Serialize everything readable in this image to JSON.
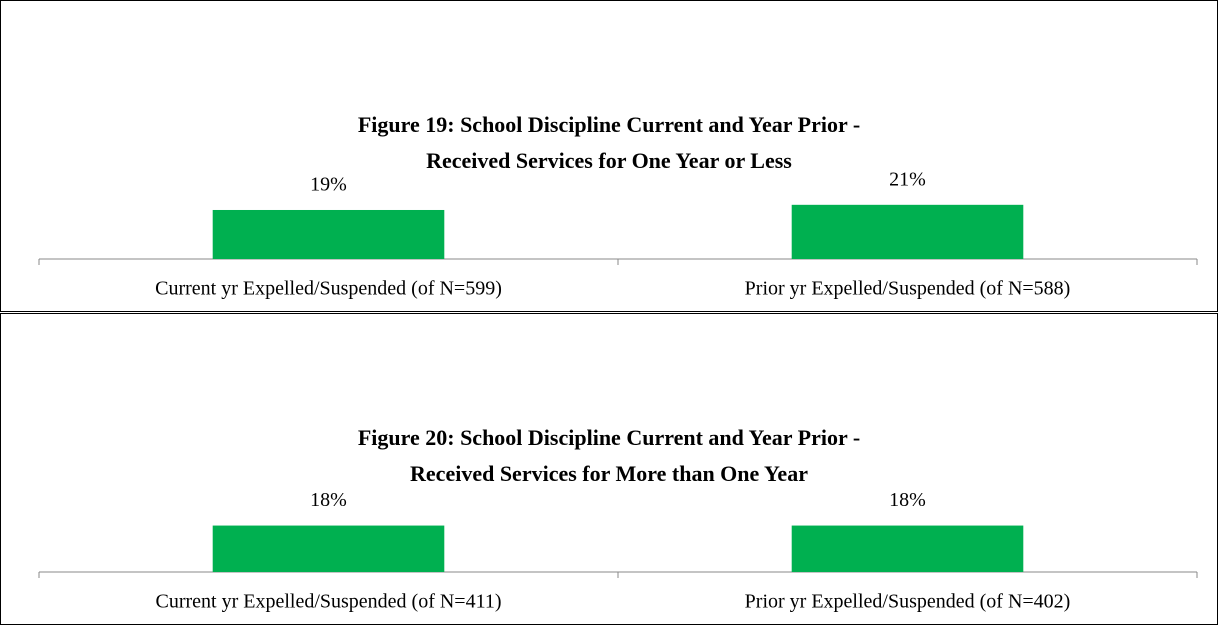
{
  "chart_data": [
    {
      "type": "bar",
      "title": "Figure 19: School Discipline Current and Year Prior -\nReceived Services for One Year or Less",
      "categories": [
        "Current yr Expelled/Suspended (of N=599)",
        "Prior yr Expelled/Suspended (of N=588)"
      ],
      "values": [
        19,
        21
      ],
      "value_labels": [
        "19%",
        "21%"
      ],
      "color": "#00b050",
      "ylim": [
        0,
        100
      ]
    },
    {
      "type": "bar",
      "title": "Figure 20: School Discipline Current and Year Prior -\nReceived Services for More than One Year",
      "categories": [
        "Current yr Expelled/Suspended (of N=411)",
        "Prior yr Expelled/Suspended (of N=402)"
      ],
      "values": [
        18,
        18
      ],
      "value_labels": [
        "18%",
        "18%"
      ],
      "color": "#00b050",
      "ylim": [
        0,
        100
      ]
    }
  ]
}
